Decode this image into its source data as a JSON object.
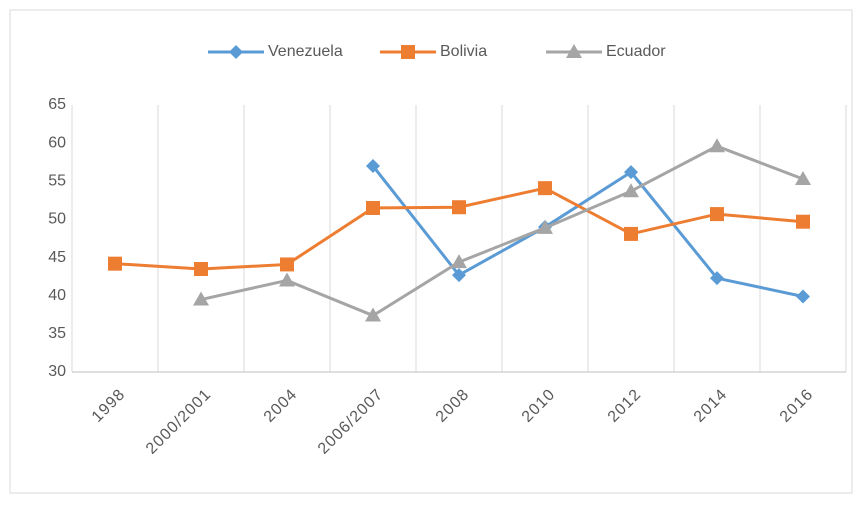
{
  "chart_data": {
    "type": "line",
    "categories": [
      "1998",
      "2000/2001",
      "2004",
      "2006/2007",
      "2008",
      "2010",
      "2012",
      "2014",
      "2016"
    ],
    "series": [
      {
        "name": "Venezuela",
        "color": "#5b9bd5",
        "marker": "diamond",
        "values": [
          null,
          null,
          null,
          57,
          42.7,
          49,
          56.2,
          42.3,
          39.9
        ]
      },
      {
        "name": "Bolivia",
        "color": "#ed7d31",
        "marker": "square",
        "values": [
          44.2,
          43.5,
          44.1,
          51.5,
          51.6,
          54.1,
          48.1,
          50.7,
          49.7
        ]
      },
      {
        "name": "Ecuador",
        "color": "#a5a5a5",
        "marker": "triangle",
        "values": [
          null,
          39.5,
          42,
          37.4,
          44.4,
          48.9,
          53.7,
          59.6,
          55.3
        ]
      }
    ],
    "ylim": [
      30,
      65
    ],
    "yticks": [
      30,
      35,
      40,
      45,
      50,
      55,
      60,
      65
    ],
    "legend": "top"
  }
}
